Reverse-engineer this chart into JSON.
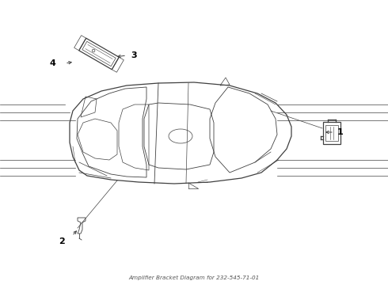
{
  "title": "Amplifier Bracket Diagram for 232-545-71-01",
  "bg_color": "#ffffff",
  "line_color": "#404040",
  "label_color": "#000000",
  "fig_width": 4.9,
  "fig_height": 3.6,
  "dpi": 100,
  "road_lines_left": [
    [
      [
        0,
        1.38
      ],
      [
        0.95,
        1.38
      ]
    ],
    [
      [
        0,
        1.48
      ],
      [
        0.95,
        1.48
      ]
    ],
    [
      [
        0,
        1.58
      ],
      [
        0.95,
        1.58
      ]
    ],
    [
      [
        0,
        2.08
      ],
      [
        0.95,
        2.08
      ]
    ],
    [
      [
        0,
        2.18
      ],
      [
        0.88,
        2.18
      ]
    ],
    [
      [
        0,
        2.28
      ],
      [
        0.82,
        2.28
      ]
    ]
  ],
  "road_lines_right": [
    [
      [
        3.5,
        1.38
      ],
      [
        4.9,
        1.38
      ]
    ],
    [
      [
        3.5,
        1.48
      ],
      [
        4.9,
        1.48
      ]
    ],
    [
      [
        3.5,
        1.58
      ],
      [
        4.9,
        1.58
      ]
    ],
    [
      [
        3.5,
        2.08
      ],
      [
        4.9,
        2.08
      ]
    ],
    [
      [
        3.5,
        2.18
      ],
      [
        4.9,
        2.18
      ]
    ],
    [
      [
        3.5,
        2.28
      ],
      [
        4.9,
        2.28
      ]
    ]
  ]
}
